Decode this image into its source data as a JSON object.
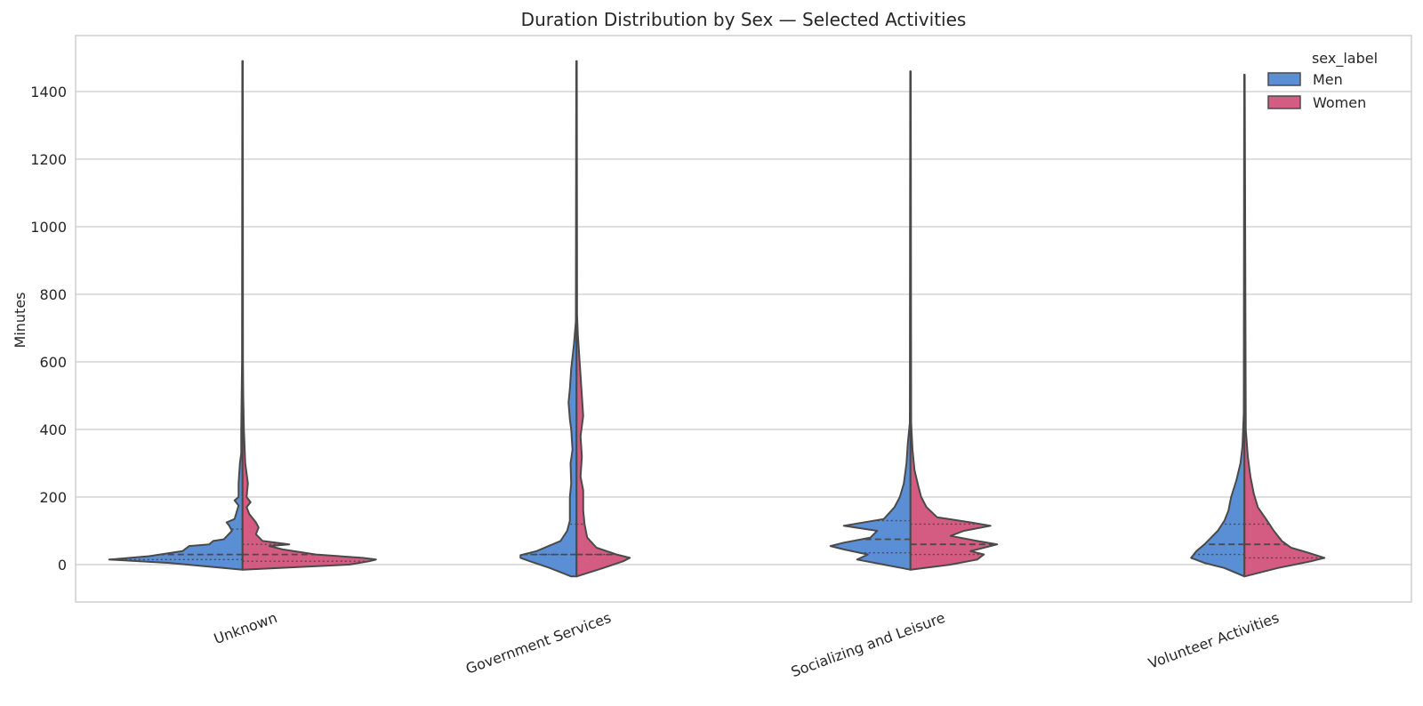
{
  "chart_data": {
    "type": "violin",
    "title": "Duration Distribution by Sex — Selected Activities",
    "xlabel": "",
    "ylabel": "Minutes",
    "ylim": [
      -110,
      1560
    ],
    "yticks": [
      0,
      200,
      400,
      600,
      800,
      1000,
      1200,
      1400
    ],
    "grid": "horizontal",
    "legend": {
      "title": "sex_label",
      "position": "top-right"
    },
    "categories": [
      "Unknown",
      "Government Services",
      "Socializing and Leisure",
      "Volunteer Activities"
    ],
    "split": true,
    "inner": "quartile",
    "series": [
      {
        "name": "Men",
        "color": "#5a8fd6",
        "range": [
          [
            -15,
            1490
          ],
          [
            -35,
            1490
          ],
          [
            -15,
            1460
          ],
          [
            -35,
            1450
          ]
        ],
        "quartiles": [
          [
            15,
            30,
            105
          ],
          [
            30,
            30,
            120
          ],
          [
            35,
            75,
            130
          ],
          [
            30,
            60,
            120
          ]
        ],
        "width_profile": [
          [
            [
              -15,
              0
            ],
            [
              5,
              0.55
            ],
            [
              15,
              1
            ],
            [
              25,
              0.7
            ],
            [
              40,
              0.45
            ],
            [
              55,
              0.4
            ],
            [
              60,
              0.25
            ],
            [
              70,
              0.22
            ],
            [
              75,
              0.14
            ],
            [
              100,
              0.08
            ],
            [
              115,
              0.1
            ],
            [
              125,
              0.12
            ],
            [
              135,
              0.06
            ],
            [
              175,
              0.03
            ],
            [
              190,
              0.06
            ],
            [
              200,
              0.03
            ],
            [
              240,
              0.03
            ],
            [
              300,
              0.02
            ],
            [
              330,
              0.01
            ],
            [
              400,
              0.01
            ],
            [
              600,
              0.004
            ],
            [
              1490,
              0.002
            ]
          ],
          [
            [
              -35,
              0.04
            ],
            [
              -10,
              0.2
            ],
            [
              10,
              0.35
            ],
            [
              20,
              0.42
            ],
            [
              28,
              0.42
            ],
            [
              40,
              0.3
            ],
            [
              70,
              0.12
            ],
            [
              100,
              0.07
            ],
            [
              130,
              0.05
            ],
            [
              200,
              0.05
            ],
            [
              240,
              0.04
            ],
            [
              300,
              0.045
            ],
            [
              340,
              0.03
            ],
            [
              400,
              0.04
            ],
            [
              430,
              0.05
            ],
            [
              480,
              0.06
            ],
            [
              520,
              0.05
            ],
            [
              580,
              0.04
            ],
            [
              650,
              0.02
            ],
            [
              720,
              0.005
            ],
            [
              1490,
              0.002
            ]
          ],
          [
            [
              -15,
              0
            ],
            [
              0,
              0.2
            ],
            [
              15,
              0.4
            ],
            [
              30,
              0.32
            ],
            [
              45,
              0.5
            ],
            [
              55,
              0.6
            ],
            [
              65,
              0.5
            ],
            [
              80,
              0.3
            ],
            [
              100,
              0.25
            ],
            [
              115,
              0.5
            ],
            [
              135,
              0.2
            ],
            [
              170,
              0.12
            ],
            [
              200,
              0.08
            ],
            [
              240,
              0.05
            ],
            [
              300,
              0.03
            ],
            [
              360,
              0.02
            ],
            [
              420,
              0.005
            ],
            [
              1460,
              0.002
            ]
          ],
          [
            [
              -35,
              0
            ],
            [
              -10,
              0.15
            ],
            [
              5,
              0.3
            ],
            [
              20,
              0.4
            ],
            [
              40,
              0.36
            ],
            [
              60,
              0.3
            ],
            [
              80,
              0.25
            ],
            [
              100,
              0.2
            ],
            [
              130,
              0.15
            ],
            [
              160,
              0.12
            ],
            [
              200,
              0.1
            ],
            [
              250,
              0.06
            ],
            [
              300,
              0.03
            ],
            [
              350,
              0.015
            ],
            [
              450,
              0.005
            ],
            [
              1450,
              0.002
            ]
          ]
        ]
      },
      {
        "name": "Women",
        "color": "#d45c82",
        "range": [
          [
            -15,
            1490
          ],
          [
            -35,
            1490
          ],
          [
            -15,
            1460
          ],
          [
            -35,
            1450
          ]
        ],
        "quartiles": [
          [
            10,
            30,
            60
          ],
          [
            30,
            30,
            120
          ],
          [
            30,
            60,
            120
          ],
          [
            20,
            60,
            120
          ]
        ],
        "width_profile": [
          [
            [
              -15,
              0
            ],
            [
              0,
              0.8
            ],
            [
              10,
              0.95
            ],
            [
              15,
              1
            ],
            [
              20,
              0.9
            ],
            [
              30,
              0.55
            ],
            [
              45,
              0.3
            ],
            [
              55,
              0.2
            ],
            [
              60,
              0.35
            ],
            [
              70,
              0.15
            ],
            [
              90,
              0.1
            ],
            [
              110,
              0.12
            ],
            [
              125,
              0.1
            ],
            [
              150,
              0.05
            ],
            [
              170,
              0.03
            ],
            [
              185,
              0.06
            ],
            [
              200,
              0.03
            ],
            [
              240,
              0.04
            ],
            [
              300,
              0.02
            ],
            [
              400,
              0.01
            ],
            [
              500,
              0.005
            ],
            [
              600,
              0.003
            ],
            [
              1490,
              0.002
            ]
          ],
          [
            [
              -35,
              0
            ],
            [
              -10,
              0.2
            ],
            [
              10,
              0.35
            ],
            [
              20,
              0.4
            ],
            [
              30,
              0.3
            ],
            [
              50,
              0.15
            ],
            [
              80,
              0.08
            ],
            [
              120,
              0.06
            ],
            [
              160,
              0.05
            ],
            [
              220,
              0.05
            ],
            [
              260,
              0.03
            ],
            [
              320,
              0.04
            ],
            [
              380,
              0.03
            ],
            [
              440,
              0.05
            ],
            [
              500,
              0.04
            ],
            [
              560,
              0.03
            ],
            [
              620,
              0.02
            ],
            [
              680,
              0.01
            ],
            [
              740,
              0.004
            ],
            [
              1490,
              0.002
            ]
          ],
          [
            [
              -15,
              0
            ],
            [
              0,
              0.3
            ],
            [
              15,
              0.5
            ],
            [
              30,
              0.55
            ],
            [
              40,
              0.45
            ],
            [
              50,
              0.55
            ],
            [
              60,
              0.65
            ],
            [
              70,
              0.5
            ],
            [
              85,
              0.3
            ],
            [
              100,
              0.4
            ],
            [
              115,
              0.6
            ],
            [
              125,
              0.45
            ],
            [
              140,
              0.2
            ],
            [
              170,
              0.12
            ],
            [
              200,
              0.08
            ],
            [
              230,
              0.06
            ],
            [
              280,
              0.03
            ],
            [
              340,
              0.015
            ],
            [
              420,
              0.005
            ],
            [
              1460,
              0.002
            ]
          ],
          [
            [
              -35,
              0
            ],
            [
              -10,
              0.25
            ],
            [
              10,
              0.5
            ],
            [
              20,
              0.6
            ],
            [
              35,
              0.48
            ],
            [
              50,
              0.35
            ],
            [
              70,
              0.28
            ],
            [
              100,
              0.22
            ],
            [
              130,
              0.17
            ],
            [
              170,
              0.1
            ],
            [
              210,
              0.07
            ],
            [
              260,
              0.045
            ],
            [
              320,
              0.025
            ],
            [
              400,
              0.01
            ],
            [
              1450,
              0.002
            ]
          ]
        ]
      }
    ]
  }
}
